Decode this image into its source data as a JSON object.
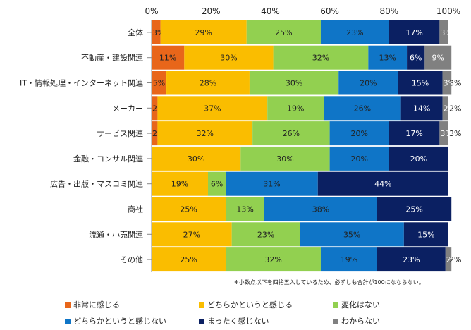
{
  "chart_data": {
    "type": "bar",
    "orientation": "horizontal",
    "stacked": true,
    "xlim": [
      0,
      100
    ],
    "x_ticks": [
      "0%",
      "20%",
      "40%",
      "60%",
      "80%",
      "100%"
    ],
    "categories": [
      "全体",
      "不動産・建設関連",
      "IT・情報処理・インターネット関連",
      "メーカー",
      "サービス関連",
      "金融・コンサル関連",
      "広告・出版・マスコミ関連",
      "商社",
      "流通・小売関連",
      "その他"
    ],
    "series": [
      {
        "name": "非常に感じる",
        "color": "#E8661A",
        "values": [
          3,
          11,
          5,
          2,
          2,
          0,
          0,
          0,
          0,
          0
        ]
      },
      {
        "name": "どちらかというと感じる",
        "color": "#FABD00",
        "values": [
          29,
          30,
          28,
          37,
          32,
          30,
          19,
          25,
          27,
          25
        ]
      },
      {
        "name": "変化はない",
        "color": "#92D050",
        "values": [
          25,
          32,
          30,
          19,
          26,
          30,
          6,
          13,
          23,
          32
        ]
      },
      {
        "name": "どちらかというと感じない",
        "color": "#0F75C7",
        "values": [
          23,
          13,
          20,
          26,
          20,
          20,
          31,
          38,
          35,
          19
        ]
      },
      {
        "name": "まったく感じない",
        "color": "#0B2062",
        "values": [
          17,
          6,
          15,
          14,
          17,
          20,
          44,
          25,
          15,
          23
        ]
      },
      {
        "name": "わからない",
        "color": "#808080",
        "values": [
          3,
          9,
          3,
          2,
          3,
          0,
          0,
          0,
          0,
          2
        ]
      }
    ],
    "outside_labels": [
      {
        "row": 2,
        "label": "3%"
      },
      {
        "row": 3,
        "label": "2%"
      },
      {
        "row": 4,
        "label": "3%"
      },
      {
        "row": 9,
        "label": "2%"
      }
    ],
    "note": "※小数点以下を四捨五入しているため、必ずしも合計が100になならない。",
    "legend_position": "bottom"
  }
}
